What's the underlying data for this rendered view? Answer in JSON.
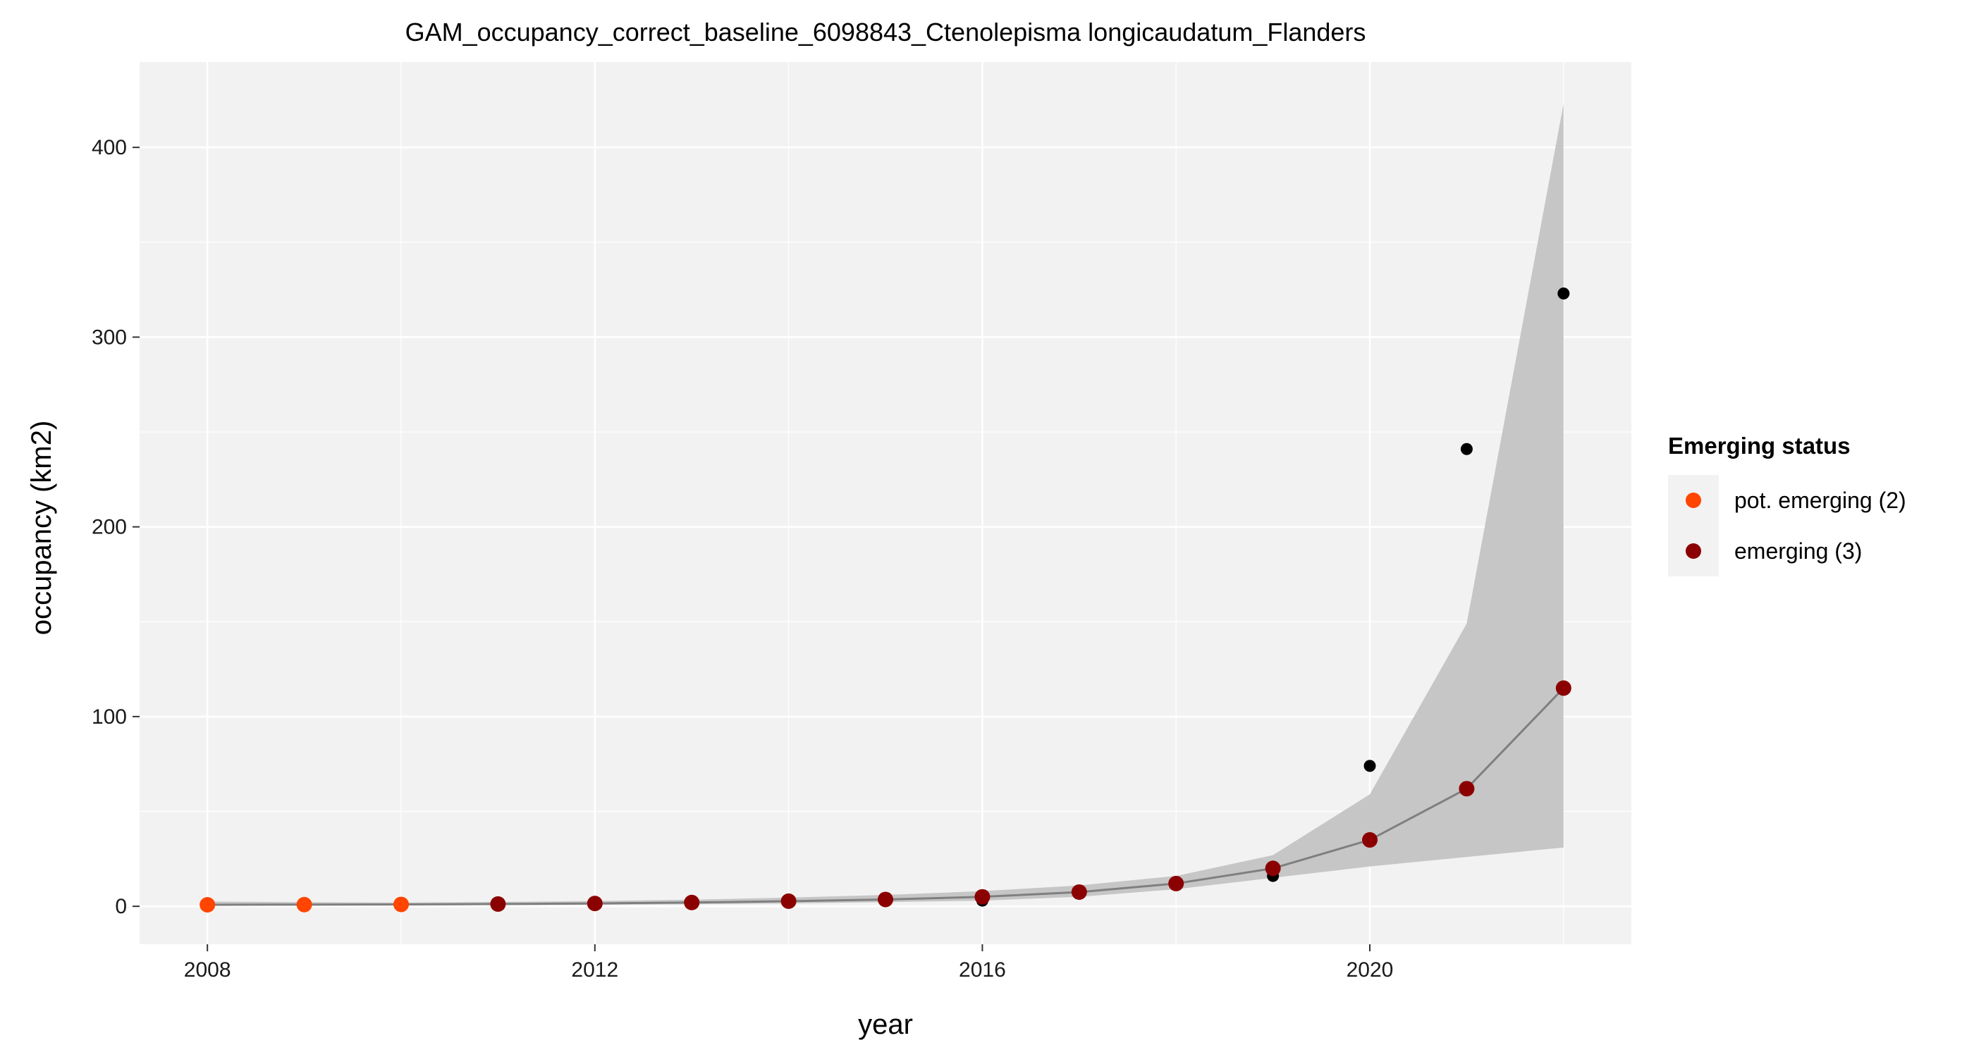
{
  "chart_data": {
    "type": "scatter",
    "title": "GAM_occupancy_correct_baseline_6098843_Ctenolepisma longicaudatum_Flanders",
    "xlabel": "year",
    "ylabel": "occupancy (km2)",
    "xlim": [
      2007.3,
      2022.7
    ],
    "ylim": [
      -20,
      445
    ],
    "x_ticks": [
      2008,
      2012,
      2016,
      2020
    ],
    "y_ticks": [
      0,
      100,
      200,
      300,
      400
    ],
    "grid": true,
    "background": "#f2f2f2",
    "legend": {
      "title": "Emerging status",
      "placement": "right",
      "entries": [
        {
          "label": "pot. emerging (2)",
          "color": "#ff4500"
        },
        {
          "label": "emerging (3)",
          "color": "#8b0000"
        }
      ]
    },
    "observed": {
      "color": "#000000",
      "points": [
        {
          "x": 2008,
          "y": 1
        },
        {
          "x": 2009,
          "y": 1
        },
        {
          "x": 2010,
          "y": 1
        },
        {
          "x": 2011,
          "y": 1
        },
        {
          "x": 2012,
          "y": 1
        },
        {
          "x": 2013,
          "y": 2
        },
        {
          "x": 2014,
          "y": 2
        },
        {
          "x": 2015,
          "y": 3
        },
        {
          "x": 2016,
          "y": 3
        },
        {
          "x": 2017,
          "y": 7
        },
        {
          "x": 2018,
          "y": 12
        },
        {
          "x": 2019,
          "y": 16
        },
        {
          "x": 2020,
          "y": 74
        },
        {
          "x": 2021,
          "y": 241
        },
        {
          "x": 2022,
          "y": 323
        }
      ]
    },
    "fitted": {
      "line_color": "#7f7f7f",
      "ribbon_color": "#c6c6c6",
      "points": [
        {
          "x": 2008,
          "y": 0.8,
          "lower": 0.3,
          "upper": 2.5,
          "status": "pot. emerging (2)"
        },
        {
          "x": 2009,
          "y": 0.9,
          "lower": 0.4,
          "upper": 2.2,
          "status": "pot. emerging (2)"
        },
        {
          "x": 2010,
          "y": 1.0,
          "lower": 0.5,
          "upper": 2.0,
          "status": "pot. emerging (2)"
        },
        {
          "x": 2011,
          "y": 1.2,
          "lower": 0.6,
          "upper": 2.3,
          "status": "emerging (3)"
        },
        {
          "x": 2012,
          "y": 1.5,
          "lower": 0.8,
          "upper": 2.8,
          "status": "emerging (3)"
        },
        {
          "x": 2013,
          "y": 2.0,
          "lower": 1.1,
          "upper": 3.5,
          "status": "emerging (3)"
        },
        {
          "x": 2014,
          "y": 2.7,
          "lower": 1.5,
          "upper": 4.6,
          "status": "emerging (3)"
        },
        {
          "x": 2015,
          "y": 3.6,
          "lower": 2.2,
          "upper": 6.0,
          "status": "emerging (3)"
        },
        {
          "x": 2016,
          "y": 5.0,
          "lower": 3.0,
          "upper": 8.0,
          "status": "emerging (3)"
        },
        {
          "x": 2017,
          "y": 7.5,
          "lower": 5.0,
          "upper": 11.0,
          "status": "emerging (3)"
        },
        {
          "x": 2018,
          "y": 12.0,
          "lower": 9.0,
          "upper": 16.0,
          "status": "emerging (3)"
        },
        {
          "x": 2019,
          "y": 20.0,
          "lower": 15.0,
          "upper": 27.0,
          "status": "emerging (3)"
        },
        {
          "x": 2020,
          "y": 35.0,
          "lower": 21.0,
          "upper": 59.0,
          "status": "emerging (3)"
        },
        {
          "x": 2021,
          "y": 62.0,
          "lower": 26.0,
          "upper": 149.0,
          "status": "emerging (3)"
        },
        {
          "x": 2022,
          "y": 115.0,
          "lower": 31.0,
          "upper": 423.0,
          "status": "emerging (3)"
        }
      ]
    }
  }
}
